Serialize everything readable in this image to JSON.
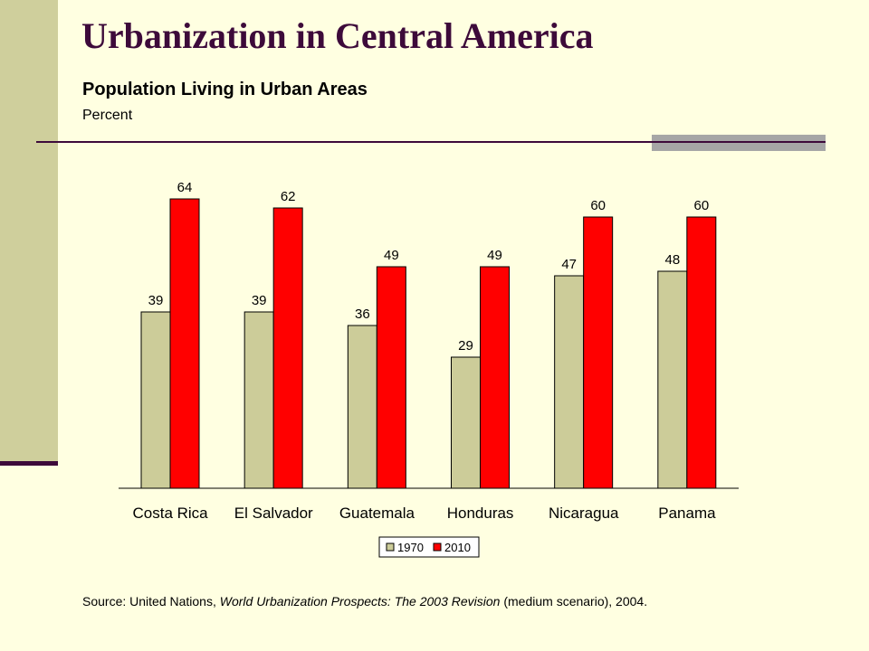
{
  "slide": {
    "title": "Urbanization in Central America",
    "subtitle": "Population Living in Urban Areas",
    "unit": "Percent",
    "source": {
      "prefix": "Source: United Nations, ",
      "publication": "World Urbanization Prospects: The 2003 Revision",
      "suffix": " (medium scenario), 2004."
    }
  },
  "colors": {
    "title": "#3d0a3a",
    "background": "#ffffe1",
    "side_bar": "#cfcf9c",
    "series_1970": "#cccc99",
    "series_2010": "#ff0000"
  },
  "chart_data": {
    "type": "bar",
    "categories": [
      "Costa Rica",
      "El Salvador",
      "Guatemala",
      "Honduras",
      "Nicaragua",
      "Panama"
    ],
    "series": [
      {
        "name": "1970",
        "values": [
          39,
          39,
          36,
          29,
          47,
          48
        ],
        "color": "#cccc99"
      },
      {
        "name": "2010",
        "values": [
          64,
          62,
          49,
          49,
          60,
          60
        ],
        "color": "#ff0000"
      }
    ],
    "data_labels": true,
    "ylim": [
      0,
      70
    ],
    "grid": false,
    "legend": "bottom-center"
  }
}
